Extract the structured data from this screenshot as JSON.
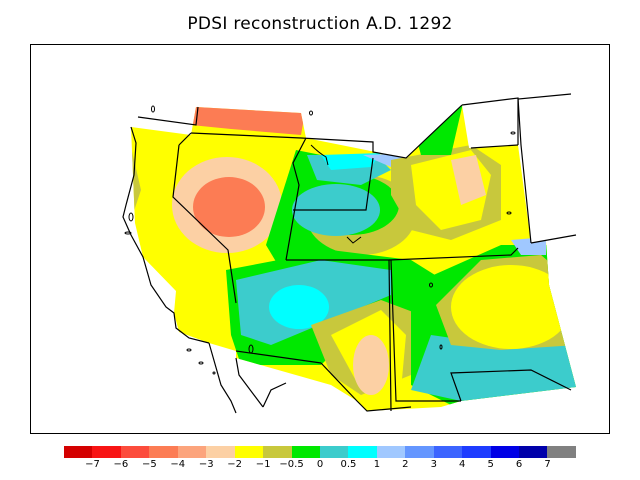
{
  "title": "PDSI reconstruction A.D. 1292",
  "colorbar": {
    "colors": [
      "#d40000",
      "#f81414",
      "#fc4c3c",
      "#fc7c54",
      "#fca47c",
      "#fcd0a4",
      "#ffff00",
      "#c8c83c",
      "#00e800",
      "#3ccccc",
      "#00ffff",
      "#a0c8ff",
      "#6496ff",
      "#3c64ff",
      "#1e3cff",
      "#0000e6",
      "#0000aa",
      "#808080"
    ],
    "tick_labels": [
      "−7",
      "−6",
      "−5",
      "−4",
      "−3",
      "−2",
      "−1",
      "−0.5",
      "0",
      "0.5",
      "1",
      "2",
      "3",
      "4",
      "5",
      "6",
      "7"
    ]
  },
  "map": {
    "region": "Western United States",
    "palette": {
      "orange": "#fc7c54",
      "light_orange": "#fca47c",
      "peach": "#fcd0a4",
      "yellow": "#ffff00",
      "olive": "#c8c83c",
      "green": "#00e800",
      "teal": "#3ccccc",
      "cyan": "#00ffff",
      "light_blue": "#a0c8ff"
    }
  }
}
